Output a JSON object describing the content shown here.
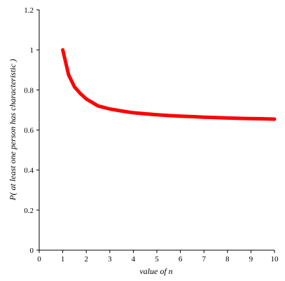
{
  "chart_data": {
    "type": "line",
    "xlabel": "value of n",
    "ylabel": "P( at least one person has characteristic )",
    "xlim": [
      0,
      10
    ],
    "ylim": [
      0,
      1.2
    ],
    "x_ticks": [
      "0",
      "1",
      "2",
      "3",
      "4",
      "5",
      "6",
      "7",
      "8",
      "9",
      "10"
    ],
    "y_ticks": [
      "0",
      "0.2",
      "0.4",
      "0.6",
      "0.8",
      "1",
      "1.2"
    ],
    "grid": false,
    "series": [
      {
        "color": "#ff0000",
        "x": [
          1,
          1.25,
          1.5,
          1.75,
          2,
          2.5,
          3,
          3.5,
          4,
          4.5,
          5,
          5.5,
          6,
          6.5,
          7,
          7.5,
          8,
          8.5,
          9,
          9.5,
          10
        ],
        "y": [
          1.0,
          0.875,
          0.815,
          0.782,
          0.755,
          0.72,
          0.705,
          0.695,
          0.686,
          0.681,
          0.676,
          0.672,
          0.669,
          0.667,
          0.664,
          0.662,
          0.66,
          0.658,
          0.657,
          0.656,
          0.654
        ]
      }
    ]
  }
}
